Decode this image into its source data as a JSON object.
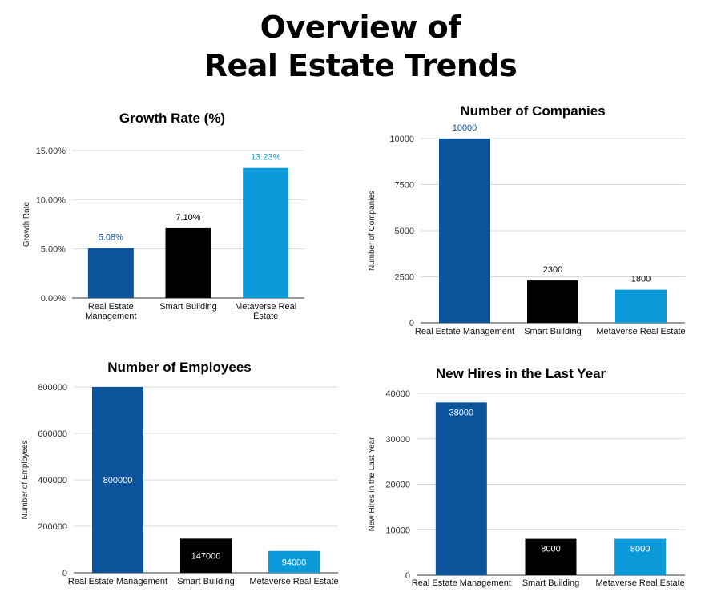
{
  "page": {
    "title_line1": "Overview of",
    "title_line2": "Real Estate Trends"
  },
  "colors": {
    "dark_blue": "#0b539b",
    "black": "#000000",
    "light_blue": "#0b9ad9",
    "grid": "#d9d9d9"
  },
  "chart_data": [
    {
      "type": "bar",
      "title": "Growth Rate (%)",
      "ylabel": "Growth Rate",
      "categories": [
        [
          "Real Estate",
          "Management"
        ],
        [
          "Smart Building"
        ],
        [
          "Metaverse Real",
          "Estate"
        ]
      ],
      "values": [
        5.08,
        7.1,
        13.23
      ],
      "data_labels": [
        "5.08%",
        "7.10%",
        "13.23%"
      ],
      "label_position": "above",
      "label_colors": [
        "#0b539b",
        "#000000",
        "#0b9ad9"
      ],
      "ylim": [
        0,
        15
      ],
      "yticks": [
        0,
        5,
        10,
        15
      ],
      "ytick_labels": [
        "0.00%",
        "5.00%",
        "10.00%",
        "15.00%"
      ],
      "bar_colors": [
        "#0b539b",
        "#000000",
        "#0b9ad9"
      ],
      "grid": true
    },
    {
      "type": "bar",
      "title": "Number of Companies",
      "ylabel": "Number of Companies",
      "categories": [
        [
          "Real Estate Management"
        ],
        [
          "Smart Building"
        ],
        [
          "Metaverse Real Estate"
        ]
      ],
      "values": [
        10000,
        2300,
        1800
      ],
      "data_labels": [
        "10000",
        "2300",
        "1800"
      ],
      "label_position": "above",
      "label_colors": [
        "#0b539b",
        "#000000",
        "#000000"
      ],
      "ylim": [
        0,
        10000
      ],
      "yticks": [
        0,
        2500,
        5000,
        7500,
        10000
      ],
      "ytick_labels": [
        "0",
        "2500",
        "5000",
        "7500",
        "10000"
      ],
      "bar_colors": [
        "#0b539b",
        "#000000",
        "#0b9ad9"
      ],
      "grid": true
    },
    {
      "type": "bar",
      "title": "Number of Employees",
      "ylabel": "Number of Employees",
      "categories": [
        [
          "Real Estate Management"
        ],
        [
          "Smart Building"
        ],
        [
          "Metaverse Real Estate"
        ]
      ],
      "values": [
        800000,
        147000,
        94000
      ],
      "data_labels": [
        "800000",
        "147000",
        "94000"
      ],
      "label_position": "inside",
      "label_colors": [
        "#ffffff",
        "#ffffff",
        "#ffffff"
      ],
      "ylim": [
        0,
        800000
      ],
      "yticks": [
        0,
        200000,
        400000,
        600000,
        800000
      ],
      "ytick_labels": [
        "0",
        "200000",
        "400000",
        "600000",
        "800000"
      ],
      "bar_colors": [
        "#0b539b",
        "#000000",
        "#0b9ad9"
      ],
      "grid": true
    },
    {
      "type": "bar",
      "title": "New Hires in the Last Year",
      "ylabel": "New Hires in the Last Year",
      "categories": [
        [
          "Real Estate Management"
        ],
        [
          "Smart Building"
        ],
        [
          "Metaverse Real Estate"
        ]
      ],
      "values": [
        38000,
        8000,
        8000
      ],
      "data_labels": [
        "38000",
        "8000",
        "8000"
      ],
      "label_position": "inside-top",
      "label_colors": [
        "#ffffff",
        "#ffffff",
        "#ffffff"
      ],
      "ylim": [
        0,
        40000
      ],
      "yticks": [
        0,
        10000,
        20000,
        30000,
        40000
      ],
      "ytick_labels": [
        "0",
        "10000",
        "20000",
        "30000",
        "40000"
      ],
      "bar_colors": [
        "#0b539b",
        "#000000",
        "#0b9ad9"
      ],
      "grid": true
    }
  ]
}
